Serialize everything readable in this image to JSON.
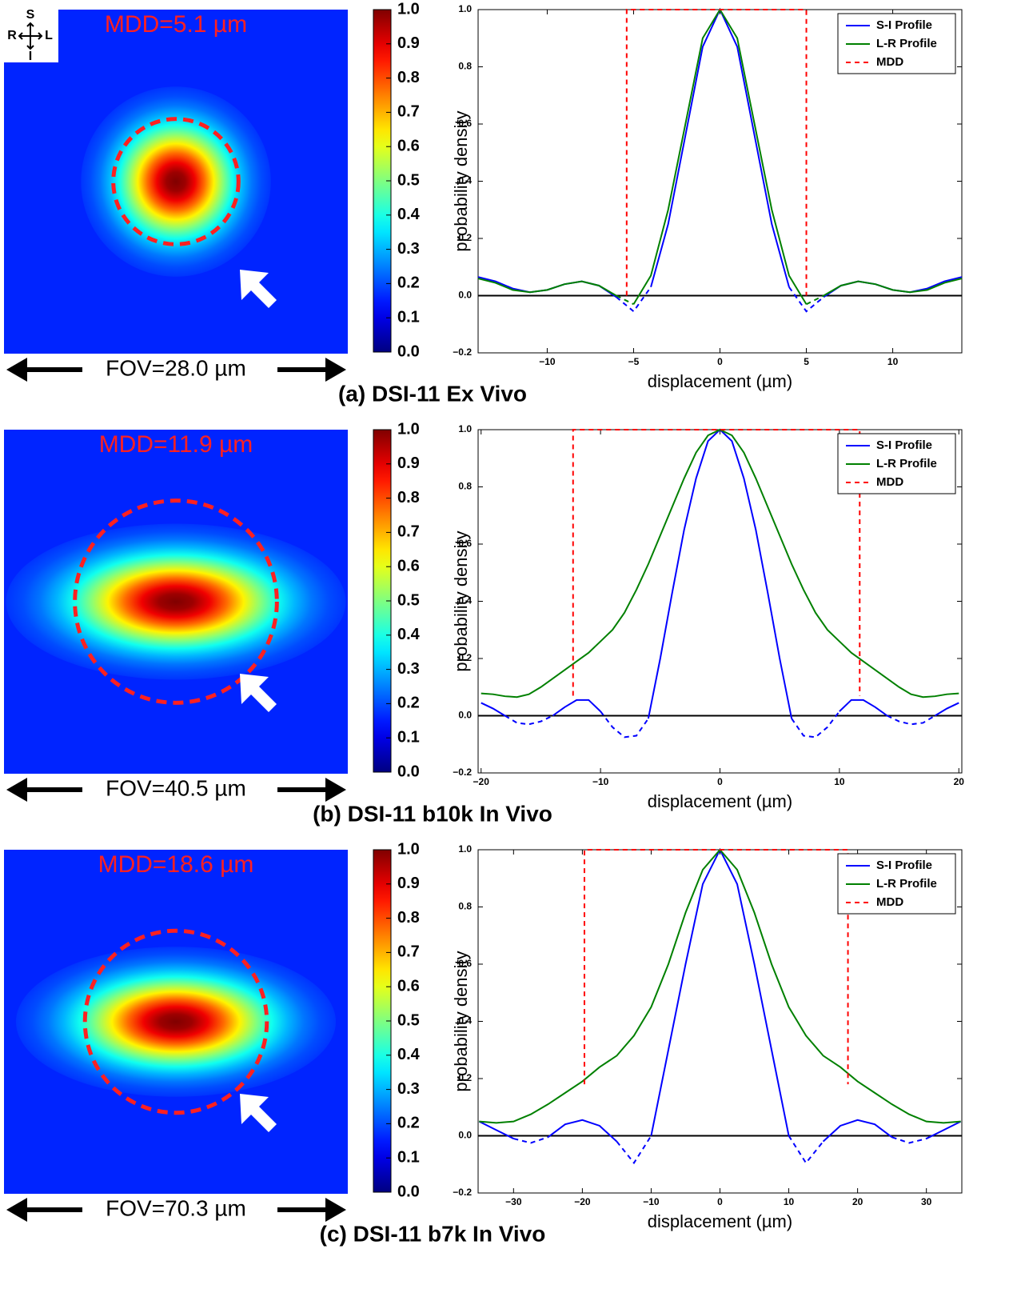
{
  "chart_data": [
    {
      "type": "heatmap",
      "mdd": {
        "value": 5.1,
        "label": "MDD=5.1 µm"
      },
      "fov": {
        "value": 28.0,
        "label": "FOV=28.0 µm"
      },
      "colormap": "jet",
      "clim": [
        0,
        1
      ],
      "circle_color": "#ff2020",
      "cticks": [
        {
          "value": 0,
          "label": "0.0"
        },
        0.1,
        0.2,
        0.3,
        0.4,
        0.5,
        0.6,
        0.7,
        0.8,
        0.9,
        {
          "value": 1,
          "label": "1.0"
        }
      ],
      "caption": "(a) DSI-11 Ex Vivo",
      "orientation_labels": [
        "S",
        "R",
        "L",
        "I"
      ]
    },
    {
      "type": "line",
      "xlabel": "displacement (µm)",
      "ylabel": "probability density",
      "xlim": [
        -14,
        14
      ],
      "ylim": [
        -0.2,
        1.0
      ],
      "xticks": [
        {
          "value": -10,
          "label": "−10"
        },
        {
          "value": -5,
          "label": "−5"
        },
        0,
        5,
        10
      ],
      "yticks": [
        {
          "value": -0.2,
          "label": "−0.2"
        },
        {
          "value": 0,
          "label": "0.0"
        },
        0.2,
        0.4,
        0.6,
        0.8,
        {
          "value": 1,
          "label": "1.0"
        }
      ],
      "zero_line": true,
      "negative_dashed": true,
      "legend": "upper right",
      "x": [
        -14,
        -13,
        -12,
        -11,
        -10,
        -9,
        -8,
        -7,
        -6,
        -5,
        -4,
        -3,
        -2,
        -1,
        0,
        1,
        2,
        3,
        4,
        5,
        6,
        7,
        8,
        9,
        10,
        11,
        12,
        13,
        14
      ],
      "series": [
        {
          "name": "S-I Profile",
          "color": "#0000ff",
          "values": [
            0.065,
            0.05,
            0.025,
            0.012,
            0.02,
            0.04,
            0.05,
            0.035,
            -0.005,
            -0.055,
            0.03,
            0.25,
            0.56,
            0.87,
            1.0,
            0.87,
            0.56,
            0.25,
            0.03,
            -0.055,
            -0.005,
            0.035,
            0.05,
            0.04,
            0.02,
            0.012,
            0.025,
            0.05,
            0.065
          ]
        },
        {
          "name": "L-R Profile",
          "color": "#008000",
          "values": [
            0.06,
            0.045,
            0.02,
            0.012,
            0.02,
            0.04,
            0.05,
            0.035,
            0,
            -0.03,
            0.07,
            0.3,
            0.6,
            0.9,
            1.0,
            0.9,
            0.6,
            0.3,
            0.07,
            -0.03,
            0,
            0.035,
            0.05,
            0.04,
            0.02,
            0.012,
            0.02,
            0.045,
            0.06
          ]
        },
        {
          "name": "MDD",
          "color": "#ff0000",
          "style": "dashed",
          "x": [
            -5.4,
            -5.4,
            5.0,
            5.0
          ],
          "values": [
            0,
            1,
            1,
            0
          ]
        }
      ]
    },
    {
      "type": "heatmap",
      "mdd": {
        "value": 11.9,
        "label": "MDD=11.9 µm"
      },
      "fov": {
        "value": 40.5,
        "label": "FOV=40.5 µm"
      },
      "colormap": "jet",
      "clim": [
        0,
        1
      ],
      "circle_color": "#ff2020",
      "cticks": [
        {
          "value": 0,
          "label": "0.0"
        },
        0.1,
        0.2,
        0.3,
        0.4,
        0.5,
        0.6,
        0.7,
        0.8,
        0.9,
        {
          "value": 1,
          "label": "1.0"
        }
      ],
      "caption": "(b) DSI-11 b10k In Vivo"
    },
    {
      "type": "line",
      "xlabel": "displacement (µm)",
      "ylabel": "probability density",
      "xlim": [
        -20.25,
        20.25
      ],
      "ylim": [
        -0.2,
        1.0
      ],
      "xticks": [
        {
          "value": -20,
          "label": "−20"
        },
        {
          "value": -10,
          "label": "−10"
        },
        0,
        10,
        20
      ],
      "yticks": [
        {
          "value": -0.2,
          "label": "−0.2"
        },
        {
          "value": 0,
          "label": "0.0"
        },
        0.2,
        0.4,
        0.6,
        0.8,
        {
          "value": 1,
          "label": "1.0"
        }
      ],
      "zero_line": true,
      "negative_dashed": true,
      "legend": "upper right",
      "x": [
        -20,
        -19,
        -18,
        -17,
        -16,
        -15,
        -14,
        -13,
        -12,
        -11,
        -10,
        -9,
        -8,
        -7,
        -6,
        -5,
        -4,
        -3,
        -2,
        -1,
        0,
        1,
        2,
        3,
        4,
        5,
        6,
        7,
        8,
        9,
        10,
        11,
        12,
        13,
        14,
        15,
        16,
        17,
        18,
        19,
        20
      ],
      "series": [
        {
          "name": "S-I Profile",
          "color": "#0000ff",
          "values": [
            0.045,
            0.025,
            0,
            -0.025,
            -0.03,
            -0.02,
            0,
            0.03,
            0.055,
            0.055,
            0.015,
            -0.04,
            -0.075,
            -0.07,
            -0.01,
            0.2,
            0.43,
            0.65,
            0.83,
            0.96,
            1.0,
            0.96,
            0.83,
            0.65,
            0.43,
            0.2,
            -0.01,
            -0.07,
            -0.075,
            -0.04,
            0.015,
            0.055,
            0.055,
            0.03,
            0,
            -0.02,
            -0.03,
            -0.025,
            0,
            0.025,
            0.045
          ]
        },
        {
          "name": "L-R Profile",
          "color": "#008000",
          "values": [
            0.078,
            0.075,
            0.068,
            0.065,
            0.075,
            0.1,
            0.13,
            0.16,
            0.19,
            0.22,
            0.26,
            0.3,
            0.36,
            0.44,
            0.53,
            0.63,
            0.73,
            0.83,
            0.92,
            0.98,
            1.0,
            0.98,
            0.92,
            0.83,
            0.73,
            0.63,
            0.53,
            0.44,
            0.36,
            0.3,
            0.26,
            0.22,
            0.19,
            0.16,
            0.13,
            0.1,
            0.075,
            0.065,
            0.068,
            0.075,
            0.078
          ]
        },
        {
          "name": "MDD",
          "color": "#ff0000",
          "style": "dashed",
          "x": [
            -12.3,
            -12.3,
            11.7,
            11.7
          ],
          "values": [
            0.07,
            1,
            1,
            0.07
          ]
        }
      ]
    },
    {
      "type": "heatmap",
      "mdd": {
        "value": 18.6,
        "label": "MDD=18.6 µm"
      },
      "fov": {
        "value": 70.3,
        "label": "FOV=70.3 µm"
      },
      "colormap": "jet",
      "clim": [
        0,
        1
      ],
      "circle_color": "#ff2020",
      "cticks": [
        {
          "value": 0,
          "label": "0.0"
        },
        0.1,
        0.2,
        0.3,
        0.4,
        0.5,
        0.6,
        0.7,
        0.8,
        0.9,
        {
          "value": 1,
          "label": "1.0"
        }
      ],
      "caption": "(c) DSI-11 b7k In Vivo"
    },
    {
      "type": "line",
      "xlabel": "displacement (µm)",
      "ylabel": "probability density",
      "xlim": [
        -35.15,
        35.15
      ],
      "ylim": [
        -0.2,
        1.0
      ],
      "xticks": [
        {
          "value": -30,
          "label": "−30"
        },
        {
          "value": -20,
          "label": "−20"
        },
        {
          "value": -10,
          "label": "−10"
        },
        0,
        10,
        20,
        30
      ],
      "yticks": [
        {
          "value": -0.2,
          "label": "−0.2"
        },
        {
          "value": 0,
          "label": "0.0"
        },
        0.2,
        0.4,
        0.6,
        0.8,
        {
          "value": 1,
          "label": "1.0"
        }
      ],
      "zero_line": true,
      "negative_dashed": true,
      "legend": "upper right",
      "x": [
        -35,
        -32.5,
        -30,
        -27.5,
        -25,
        -22.5,
        -20,
        -17.5,
        -15,
        -12.5,
        -10,
        -7.5,
        -5,
        -2.5,
        0,
        2.5,
        5,
        7.5,
        10,
        12.5,
        15,
        17.5,
        20,
        22.5,
        25,
        27.5,
        30,
        32.5,
        35
      ],
      "series": [
        {
          "name": "S-I Profile",
          "color": "#0000ff",
          "values": [
            0.05,
            0.02,
            -0.01,
            -0.025,
            -0.005,
            0.04,
            0.055,
            0.035,
            -0.02,
            -0.095,
            0,
            0.3,
            0.6,
            0.88,
            1.0,
            0.88,
            0.6,
            0.3,
            0,
            -0.095,
            -0.02,
            0.035,
            0.055,
            0.04,
            -0.005,
            -0.025,
            -0.01,
            0.02,
            0.05
          ]
        },
        {
          "name": "L-R Profile",
          "color": "#008000",
          "values": [
            0.05,
            0.045,
            0.05,
            0.075,
            0.11,
            0.15,
            0.19,
            0.24,
            0.28,
            0.35,
            0.45,
            0.6,
            0.78,
            0.93,
            1.0,
            0.93,
            0.78,
            0.6,
            0.45,
            0.35,
            0.28,
            0.24,
            0.19,
            0.15,
            0.11,
            0.075,
            0.05,
            0.045,
            0.05
          ]
        },
        {
          "name": "MDD",
          "color": "#ff0000",
          "style": "dashed",
          "x": [
            -19.7,
            -19.7,
            18.6,
            18.6
          ],
          "values": [
            0.18,
            1,
            1,
            0.18
          ]
        }
      ]
    }
  ]
}
